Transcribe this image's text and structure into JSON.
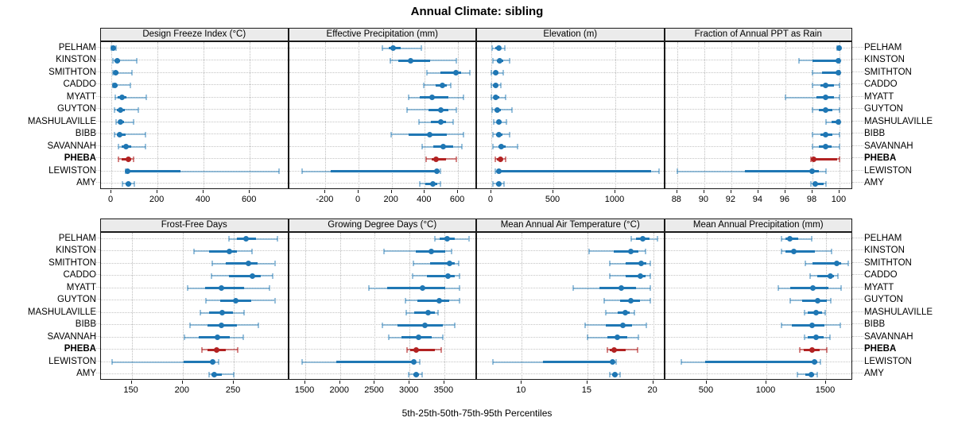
{
  "title": "Annual Climate: sibling",
  "caption": "5th-25th-50th-75th-95th Percentiles",
  "colors": {
    "series_blue": "#1f77b4",
    "series_blue_light": "rgba(31,119,180,0.45)",
    "highlight_red": "#b22222",
    "highlight_red_light": "rgba(178,34,34,0.55)",
    "strip_bg": "#ebebeb",
    "grid": "#c4c4c4",
    "border": "#1a1a1a"
  },
  "chart_data": {
    "type": "errorbar",
    "title": "Annual Climate: sibling",
    "xlabel": "5th-25th-50th-75th-95th Percentiles",
    "percentile_labels": [
      "5th",
      "25th",
      "50th",
      "75th",
      "95th"
    ],
    "highlight_site": "PHEBA",
    "legend_position": "none",
    "grid": "dotted",
    "sites": [
      "PELHAM",
      "KINSTON",
      "SMITHTON",
      "CADDO",
      "MYATT",
      "GUYTON",
      "MASHULAVILLE",
      "BIBB",
      "SAVANNAH",
      "PHEBA",
      "LEWISTON",
      "AMY"
    ],
    "panels": [
      {
        "label": "Design Freeze Index (°C)",
        "row": 0,
        "ticks": [
          0,
          200,
          400,
          600
        ],
        "xlim": [
          -45,
          770
        ],
        "values": [
          [
            1,
            5,
            9,
            14,
            20
          ],
          [
            6,
            15,
            24,
            38,
            109
          ],
          [
            6,
            12,
            20,
            32,
            90
          ],
          [
            6,
            10,
            17,
            27,
            82
          ],
          [
            17,
            29,
            47,
            67,
            151
          ],
          [
            13,
            24,
            41,
            59,
            116
          ],
          [
            21,
            30,
            38,
            54,
            96
          ],
          [
            13,
            24,
            36,
            62,
            147
          ],
          [
            30,
            44,
            65,
            86,
            147
          ],
          [
            30,
            45,
            75,
            85,
            96
          ],
          [
            63,
            68,
            72,
            300,
            728
          ],
          [
            49,
            61,
            75,
            86,
            101
          ]
        ]
      },
      {
        "label": "Effective Precipitation (mm)",
        "row": 0,
        "ticks": [
          -200,
          0,
          200,
          400,
          600
        ],
        "xlim": [
          -420,
          715
        ],
        "values": [
          [
            145,
            180,
            210,
            255,
            380
          ],
          [
            190,
            240,
            315,
            430,
            590
          ],
          [
            415,
            495,
            590,
            620,
            670
          ],
          [
            395,
            465,
            505,
            535,
            555
          ],
          [
            300,
            370,
            445,
            540,
            635
          ],
          [
            295,
            420,
            495,
            540,
            590
          ],
          [
            365,
            435,
            495,
            530,
            570
          ],
          [
            195,
            300,
            430,
            535,
            635
          ],
          [
            385,
            450,
            510,
            570,
            625
          ],
          [
            410,
            440,
            467,
            530,
            590
          ],
          [
            -340,
            -170,
            475,
            485,
            495
          ],
          [
            370,
            405,
            448,
            475,
            493
          ]
        ]
      },
      {
        "label": "Elevation (m)",
        "row": 0,
        "ticks": [
          0,
          500,
          1000
        ],
        "xlim": [
          -115,
          1400
        ],
        "values": [
          [
            5,
            30,
            58,
            80,
            108
          ],
          [
            10,
            42,
            70,
            95,
            148
          ],
          [
            2,
            18,
            38,
            60,
            96
          ],
          [
            3,
            15,
            35,
            50,
            77
          ],
          [
            3,
            18,
            38,
            65,
            115
          ],
          [
            6,
            28,
            50,
            80,
            167
          ],
          [
            18,
            42,
            64,
            85,
            122
          ],
          [
            10,
            38,
            64,
            90,
            148
          ],
          [
            15,
            55,
            83,
            118,
            212
          ],
          [
            30,
            48,
            71,
            92,
            118
          ],
          [
            35,
            48,
            58,
            1290,
            1353
          ],
          [
            15,
            40,
            58,
            78,
            100
          ]
        ]
      },
      {
        "label": "Fraction of Annual PPT as Rain",
        "row": 0,
        "ticks": [
          88,
          90,
          92,
          94,
          96,
          98,
          100
        ],
        "xlim": [
          87.1,
          101
        ],
        "values": [
          [
            99.8,
            100,
            100,
            100,
            100
          ],
          [
            97.0,
            98.0,
            99.9,
            100,
            100
          ],
          [
            98.0,
            98.7,
            99.9,
            100,
            100
          ],
          [
            98.0,
            98.6,
            99.0,
            99.6,
            100
          ],
          [
            96.0,
            98.3,
            99.0,
            99.6,
            100
          ],
          [
            98.0,
            98.5,
            99.0,
            99.5,
            100
          ],
          [
            99.0,
            99.4,
            99.9,
            100,
            100
          ],
          [
            98.0,
            98.6,
            99.0,
            99.5,
            100
          ],
          [
            98.0,
            98.5,
            99.0,
            99.4,
            100
          ],
          [
            97.9,
            98.0,
            98.1,
            99.8,
            100
          ],
          [
            88.0,
            93.0,
            98.0,
            98.5,
            99.0
          ],
          [
            97.9,
            98.0,
            98.2,
            98.8,
            99.0
          ]
        ]
      },
      {
        "label": "Frost-Free Days",
        "row": 1,
        "ticks": [
          150,
          200,
          250
        ],
        "xlim": [
          120,
          304
        ],
        "values": [
          [
            245,
            253,
            262,
            272,
            293
          ],
          [
            211,
            226,
            246,
            253,
            268
          ],
          [
            229,
            242,
            264,
            273,
            290
          ],
          [
            228,
            245,
            268,
            276,
            288
          ],
          [
            205,
            222,
            238,
            260,
            285
          ],
          [
            223,
            237,
            252,
            267,
            290
          ],
          [
            217,
            226,
            239,
            249,
            260
          ],
          [
            207,
            224,
            238,
            253,
            274
          ],
          [
            202,
            216,
            234,
            246,
            259
          ],
          [
            219,
            224,
            233,
            242,
            254
          ],
          [
            131,
            201,
            229,
            231,
            235
          ],
          [
            226,
            228,
            231,
            238,
            250
          ]
        ]
      },
      {
        "label": "Growing Degree Days (°C)",
        "row": 1,
        "ticks": [
          1500,
          2000,
          2500,
          3000,
          3500
        ],
        "xlim": [
          1265,
          3970
        ],
        "values": [
          [
            3360,
            3435,
            3545,
            3650,
            3850
          ],
          [
            2630,
            3090,
            3315,
            3515,
            3600
          ],
          [
            3060,
            3290,
            3580,
            3650,
            3710
          ],
          [
            3045,
            3250,
            3550,
            3650,
            3720
          ],
          [
            2420,
            2680,
            3190,
            3515,
            3720
          ],
          [
            2935,
            3115,
            3430,
            3570,
            3720
          ],
          [
            2950,
            3070,
            3265,
            3365,
            3410
          ],
          [
            2610,
            2830,
            3220,
            3480,
            3650
          ],
          [
            2695,
            2885,
            3135,
            3320,
            3475
          ],
          [
            2960,
            3010,
            3090,
            3360,
            3455
          ],
          [
            1455,
            1945,
            3065,
            3090,
            3150
          ],
          [
            2990,
            3050,
            3090,
            3130,
            3180
          ]
        ]
      },
      {
        "label": "Mean Annual Air Temperature (°C)",
        "row": 1,
        "ticks": [
          10,
          15,
          20
        ],
        "xlim": [
          6.6,
          20.9
        ],
        "values": [
          [
            18.3,
            18.7,
            19.2,
            19.7,
            20.3
          ],
          [
            15.1,
            17.0,
            18.3,
            18.9,
            19.4
          ],
          [
            16.7,
            17.9,
            19.1,
            19.5,
            19.8
          ],
          [
            16.7,
            17.9,
            19.0,
            19.4,
            19.8
          ],
          [
            13.9,
            15.9,
            17.6,
            18.7,
            19.8
          ],
          [
            16.3,
            17.5,
            18.3,
            19.0,
            19.8
          ],
          [
            16.4,
            17.3,
            17.9,
            18.2,
            18.6
          ],
          [
            14.8,
            16.4,
            17.7,
            18.4,
            19.5
          ],
          [
            15.0,
            16.5,
            17.3,
            18.0,
            18.9
          ],
          [
            16.5,
            16.7,
            17.0,
            17.9,
            18.8
          ],
          [
            7.8,
            11.6,
            16.9,
            17.0,
            17.2
          ],
          [
            16.7,
            16.9,
            17.1,
            17.2,
            17.5
          ]
        ]
      },
      {
        "label": "Mean Annual Precipitation (mm)",
        "row": 1,
        "ticks": [
          500,
          1000,
          1500
        ],
        "xlim": [
          150,
          1727
        ],
        "values": [
          [
            1125,
            1160,
            1200,
            1270,
            1380
          ],
          [
            1130,
            1160,
            1230,
            1410,
            1550
          ],
          [
            1330,
            1390,
            1590,
            1630,
            1690
          ],
          [
            1370,
            1430,
            1540,
            1570,
            1600
          ],
          [
            1100,
            1200,
            1390,
            1520,
            1630
          ],
          [
            1200,
            1300,
            1430,
            1505,
            1540
          ],
          [
            1320,
            1350,
            1420,
            1465,
            1495
          ],
          [
            1130,
            1215,
            1385,
            1490,
            1620
          ],
          [
            1320,
            1350,
            1415,
            1480,
            1535
          ],
          [
            1280,
            1315,
            1385,
            1450,
            1505
          ],
          [
            290,
            490,
            1405,
            1430,
            1455
          ],
          [
            1260,
            1330,
            1375,
            1400,
            1430
          ]
        ]
      }
    ]
  }
}
